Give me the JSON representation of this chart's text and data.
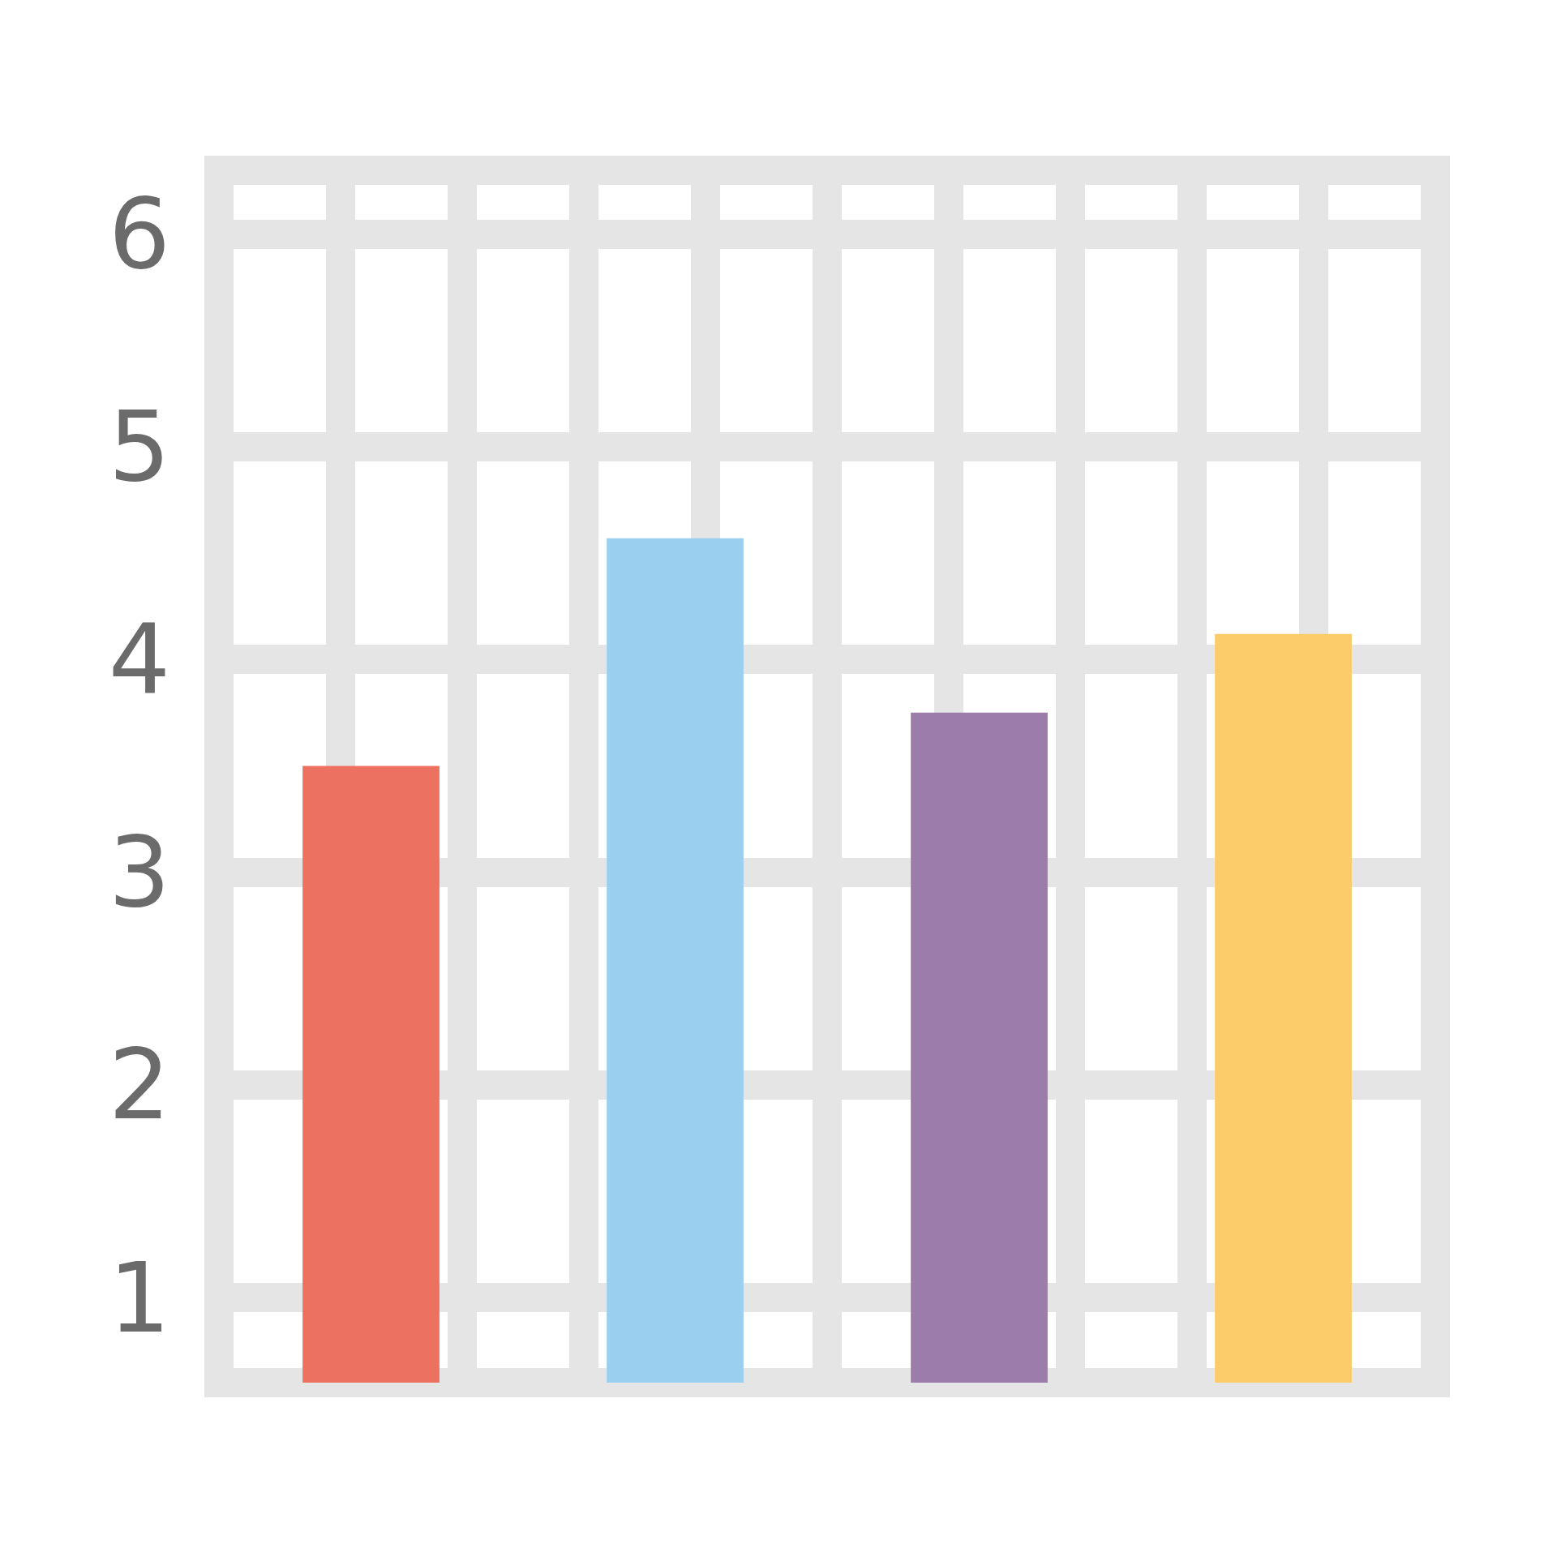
{
  "chart_data": {
    "type": "bar",
    "categories": [
      null,
      null,
      null,
      null
    ],
    "values": [
      3.5,
      4.57,
      3.75,
      4.12
    ],
    "colors": [
      "#ed7161",
      "#9bcff0",
      "#9c7cab",
      "#fccc6a"
    ],
    "ylim": [
      0.6,
      6.3
    ],
    "yticks": [
      1,
      2,
      3,
      4,
      5,
      6
    ],
    "grid": true
  }
}
